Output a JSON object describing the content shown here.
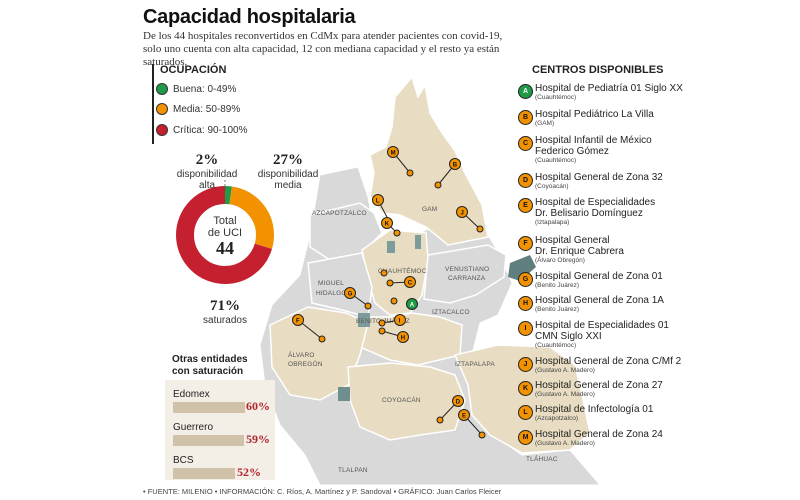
{
  "title": "Capacidad hospitalaria",
  "subtitle": "De los 44 hospitales reconvertidos en CdMx para atender pacientes con covid-19, solo uno cuenta con alta capacidad, 12 con mediana capacidad y el resto ya están saturados.",
  "legend": {
    "title": "OCUPACIÓN",
    "items": [
      {
        "label": "Buena: 0-49%",
        "color": "#1f9a47"
      },
      {
        "label": "Media: 50-89%",
        "color": "#f39200"
      },
      {
        "label": "Crítica: 90-100%",
        "color": "#c4202f"
      }
    ]
  },
  "donut": {
    "center_line1": "Total",
    "center_line2": "de UCI",
    "center_value": "44",
    "segments": [
      {
        "pct": "2%",
        "label_line1": "disponibilidad",
        "label_line2": "alta",
        "value": 1,
        "color": "#1f9a47"
      },
      {
        "pct": "27%",
        "label_line1": "disponibilidad",
        "label_line2": "media",
        "value": 12,
        "color": "#f39200"
      },
      {
        "pct": "71%",
        "label_line1": "saturados",
        "label_line2": "",
        "value": 31,
        "color": "#c4202f"
      }
    ]
  },
  "otras": {
    "title_line1": "Otras entidades",
    "title_line2": "con saturación",
    "items": [
      {
        "name": "Edomex",
        "value": "60%",
        "fraction": 0.6
      },
      {
        "name": "Guerrero",
        "value": "59%",
        "fraction": 0.59
      },
      {
        "name": "BCS",
        "value": "52%",
        "fraction": 0.52
      }
    ]
  },
  "centros": {
    "title": "CENTROS DISPONIBLES",
    "items": [
      {
        "letter": "A",
        "status": "buena",
        "name1": "Hospital de Pediatría 01 Siglo XX",
        "name2": "",
        "sub": "(Cuauhtémoc)"
      },
      {
        "letter": "B",
        "status": "media",
        "name1": "Hospital Pediátrico La Villa",
        "name2": "",
        "sub": "(GAM)"
      },
      {
        "letter": "C",
        "status": "media",
        "name1": "Hospital Infantil de México",
        "name2": "Federico Gómez",
        "sub": "(Cuauhtémoc)"
      },
      {
        "letter": "D",
        "status": "media",
        "name1": "Hospital General de Zona 32",
        "name2": "",
        "sub": "(Coyoacán)"
      },
      {
        "letter": "E",
        "status": "media",
        "name1": "Hospital de Especialidades",
        "name2": "Dr. Belisario Domínguez",
        "sub": "(Iztapalapa)"
      },
      {
        "letter": "F",
        "status": "media",
        "name1": "Hospital General",
        "name2": "Dr. Enrique Cabrera",
        "sub": "(Álvaro Obregón)"
      },
      {
        "letter": "G",
        "status": "media",
        "name1": "Hospital General de Zona 01",
        "name2": "",
        "sub": "(Benito Juárez)"
      },
      {
        "letter": "H",
        "status": "media",
        "name1": "Hospital General de Zona 1A",
        "name2": "",
        "sub": "(Benito Juárez)"
      },
      {
        "letter": "I",
        "status": "media",
        "name1": "Hospital de Especialidades 01",
        "name2": "CMN Siglo XXI",
        "sub": "(Cuauhtémoc)"
      },
      {
        "letter": "J",
        "status": "media",
        "name1": "Hospital General de Zona C/Mf 2",
        "name2": "",
        "sub": "(Gustavo A. Madero)"
      },
      {
        "letter": "K",
        "status": "media",
        "name1": "Hospital General de Zona 27",
        "name2": "",
        "sub": "(Gustavo A. Madero)"
      },
      {
        "letter": "L",
        "status": "media",
        "name1": "Hospital de Infectología 01",
        "name2": "",
        "sub": "(Azcapotzalco)"
      },
      {
        "letter": "M",
        "status": "media",
        "name1": "Hospital General de Zona 24",
        "name2": "",
        "sub": "(Gustavo A. Madero)"
      }
    ]
  },
  "map_labels": {
    "gam": "GAM",
    "azcapotzalco": "AZCAPOTZALCO",
    "cuauhtemoc": "CUAUHTÉMOC",
    "venustiano1": "VENUSTIANO",
    "venustiano2": "CARRANZA",
    "miguel1": "MIGUEL",
    "miguel2": "HIDALGO",
    "iztacalco": "IZTACALCO",
    "benito": "BENITO JUÁREZ",
    "alvaro1": "ÁLVARO",
    "alvaro2": "OBREGÓN",
    "iztapalapa": "IZTAPALAPA",
    "coyoacan": "COYOACÁN",
    "tlalpan": "TLALPAN",
    "tlahuac": "TLÁHUAC"
  },
  "footer": "• FUENTE: MILENIO • INFORMACIÓN: C. Ríos, A. Martínez y P. Sandoval • GRÁFICO: Juan Carlos Fleicer"
}
